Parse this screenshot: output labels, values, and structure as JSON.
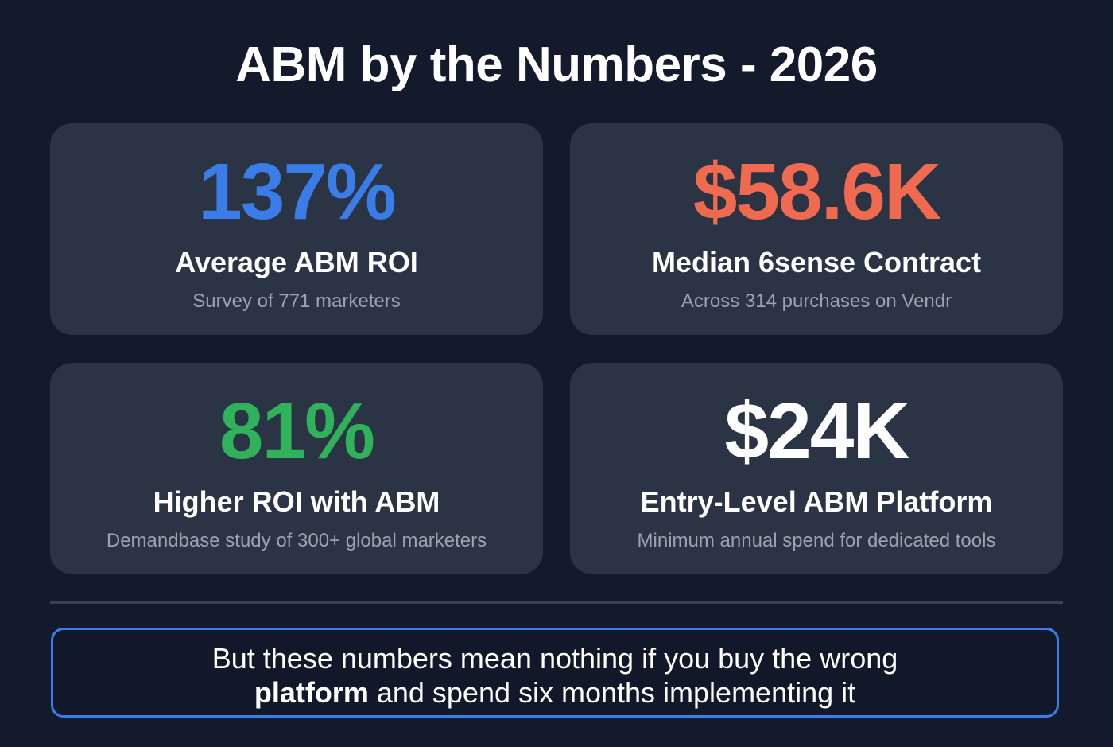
{
  "title": "ABM by the Numbers - 2026",
  "cards": [
    {
      "value": "137%",
      "label": "Average ABM ROI",
      "sub": "Survey of 771 marketers",
      "color": "#3b7de8"
    },
    {
      "value": "$58.6K",
      "label": "Median 6sense Contract",
      "sub": "Across 314 purchases on Vendr",
      "color": "#f06a50"
    },
    {
      "value": "81%",
      "label": "Higher ROI with ABM",
      "sub": "Demandbase study of 300+ global marketers",
      "color": "#2fb25a"
    },
    {
      "value": "$24K",
      "label": "Entry-Level ABM Platform",
      "sub": "Minimum annual spend for dedicated tools",
      "color": "#ffffff"
    }
  ],
  "callout": {
    "line1": "But these numbers mean nothing if you buy the wrong",
    "bold": "platform",
    "line2_rest": " and spend six months implementing it"
  }
}
